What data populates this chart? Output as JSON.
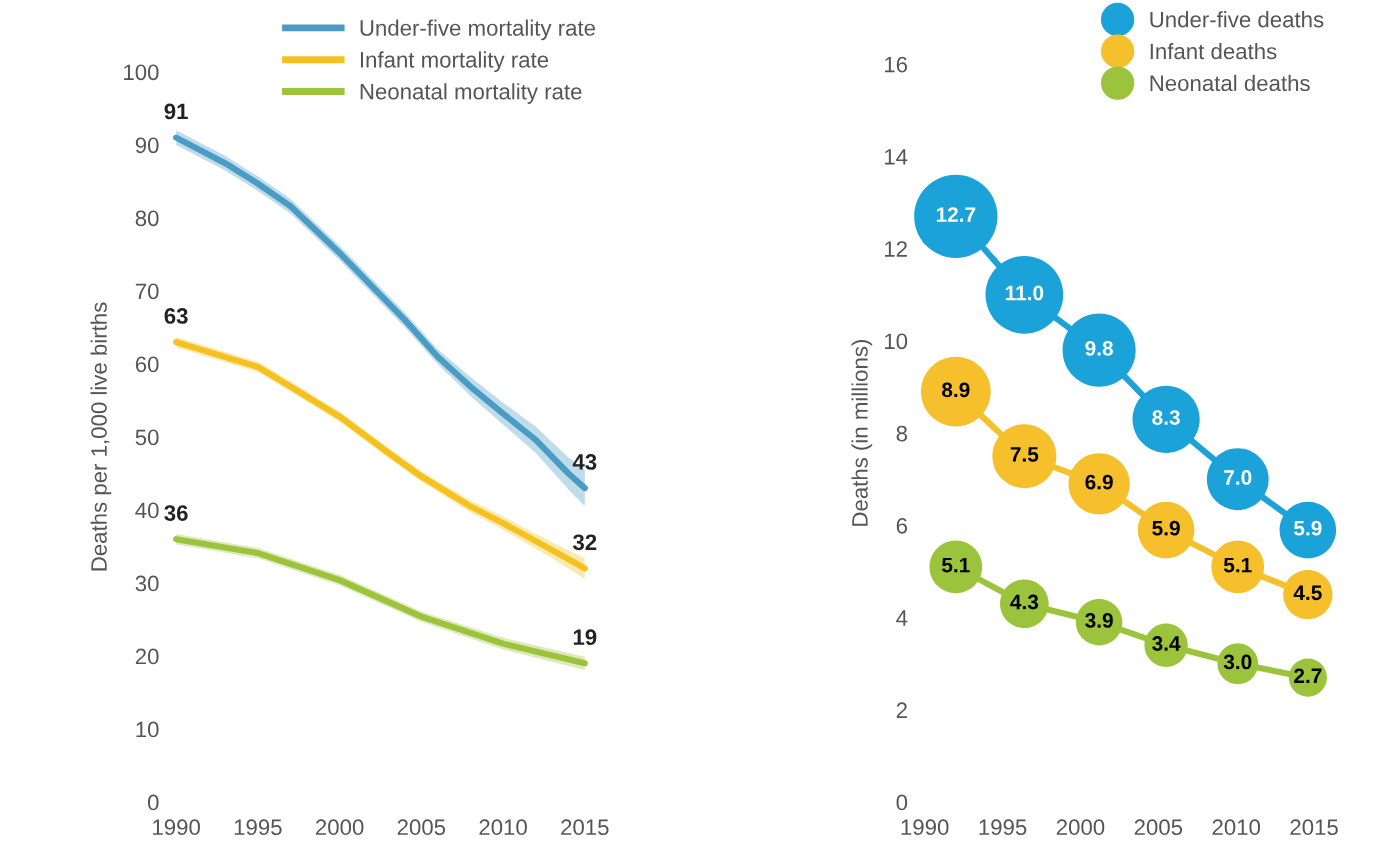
{
  "chart_data": [
    {
      "type": "line",
      "ylabel": "Deaths per 1,000 live births",
      "xlim": [
        1990,
        2015
      ],
      "ylim": [
        0,
        100
      ],
      "xticks": [
        1990,
        1995,
        2000,
        2005,
        2010,
        2015
      ],
      "yticks": [
        0,
        10,
        20,
        30,
        40,
        50,
        60,
        70,
        80,
        90,
        100
      ],
      "grid": false,
      "legend": "top right",
      "marker": "none",
      "line_style": "solid",
      "series": [
        {
          "name": "Under-five mortality rate",
          "color": "#4a9cc4",
          "x": [
            1990,
            1993,
            1995,
            1997,
            2000,
            2002,
            2004,
            2006,
            2008,
            2010,
            2012,
            2014,
            2015
          ],
          "values": [
            91,
            87.5,
            84.7,
            81.6,
            75.2,
            70.6,
            66,
            61,
            56.9,
            53.2,
            49.6,
            45,
            43
          ],
          "lower": [
            90,
            86.5,
            83.7,
            80.6,
            74.2,
            69.6,
            65,
            60,
            55.6,
            51.7,
            47.8,
            42.8,
            40.5
          ],
          "upper": [
            92,
            88.5,
            85.7,
            82.6,
            76.2,
            71.6,
            67,
            62,
            58.2,
            54.7,
            51.4,
            47.2,
            45.5
          ],
          "value_labels": [
            "91",
            null,
            null,
            null,
            null,
            null,
            null,
            null,
            null,
            null,
            null,
            null,
            "43"
          ]
        },
        {
          "name": "Infant mortality rate",
          "color": "#f5c11e",
          "x": [
            1990,
            1995,
            1997,
            2000,
            2003,
            2005,
            2008,
            2010,
            2013,
            2015
          ],
          "values": [
            63,
            59.6,
            56.9,
            52.8,
            47.8,
            44.6,
            40.5,
            38.2,
            34.5,
            32
          ],
          "lower": [
            62.3,
            58.9,
            56.2,
            52.1,
            47.1,
            43.9,
            39.7,
            37.3,
            33.4,
            30.6
          ],
          "upper": [
            63.7,
            60.3,
            57.6,
            53.5,
            48.5,
            45.3,
            41.3,
            39.1,
            35.6,
            33.4
          ],
          "value_labels": [
            "63",
            null,
            null,
            null,
            null,
            null,
            null,
            null,
            null,
            "32"
          ]
        },
        {
          "name": "Neonatal mortality rate",
          "color": "#9cc33c",
          "x": [
            1990,
            1995,
            2000,
            2005,
            2010,
            2015
          ],
          "values": [
            36,
            34.1,
            30.4,
            25.4,
            21.7,
            19
          ],
          "lower": [
            35.3,
            33.4,
            29.7,
            24.7,
            20.9,
            18.1
          ],
          "upper": [
            36.7,
            34.8,
            31.1,
            26.1,
            22.5,
            19.9
          ],
          "value_labels": [
            "36",
            null,
            null,
            null,
            null,
            "19"
          ]
        }
      ]
    },
    {
      "type": "bubble",
      "ylabel": "Deaths (in millions)",
      "xlim": [
        1990,
        2015
      ],
      "ylim": [
        0,
        16
      ],
      "xticks": [
        1990,
        1995,
        2000,
        2005,
        2010,
        2015
      ],
      "yticks": [
        0,
        2,
        4,
        6,
        8,
        10,
        12,
        14,
        16
      ],
      "grid": false,
      "legend": "top right",
      "marker": "circle",
      "line_style": "solid",
      "series": [
        {
          "name": "Under-five deaths",
          "color": "#1ba3d9",
          "x": [
            1992,
            1996.4,
            2001.2,
            2005.5,
            2010.1,
            2014.6
          ],
          "values": [
            12.7,
            11.0,
            9.8,
            8.3,
            7.0,
            5.9
          ],
          "sizes": [
            1,
            0.87,
            0.77,
            0.65,
            0.55,
            0.46
          ],
          "value_labels": [
            "12.7",
            "11.0",
            "9.8",
            "8.3",
            "7.0",
            "5.9"
          ]
        },
        {
          "name": "Infant deaths",
          "color": "#f5c02c",
          "x": [
            1992,
            1996.4,
            2001.2,
            2005.5,
            2010.1,
            2014.6
          ],
          "values": [
            8.9,
            7.5,
            6.9,
            5.9,
            5.1,
            4.5
          ],
          "sizes": [
            0.7,
            0.59,
            0.54,
            0.46,
            0.4,
            0.35
          ],
          "value_labels": [
            "8.9",
            "7.5",
            "6.9",
            "5.9",
            "5.1",
            "4.5"
          ]
        },
        {
          "name": "Neonatal deaths",
          "color": "#9bc43c",
          "x": [
            1992,
            1996.4,
            2001.2,
            2005.5,
            2010.1,
            2014.6
          ],
          "values": [
            5.1,
            4.3,
            3.9,
            3.4,
            3.0,
            2.7
          ],
          "sizes": [
            0.4,
            0.34,
            0.31,
            0.27,
            0.24,
            0.21
          ],
          "value_labels": [
            "5.1",
            "4.3",
            "3.9",
            "3.4",
            "3.0",
            "2.7"
          ]
        }
      ]
    }
  ]
}
